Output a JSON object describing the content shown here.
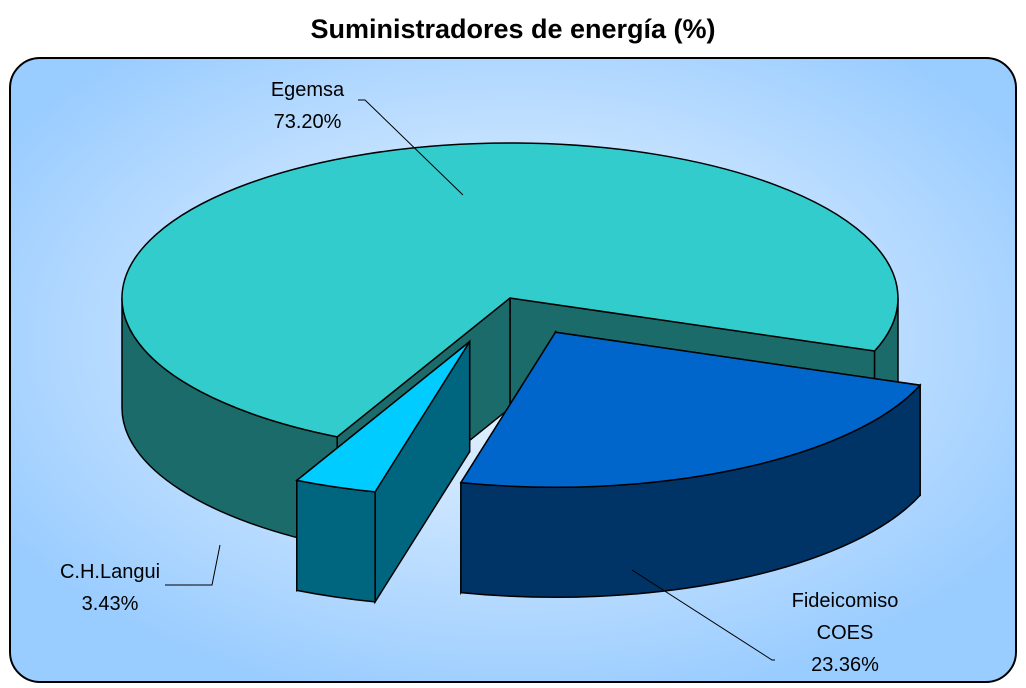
{
  "chart_data": {
    "type": "pie3d",
    "title": "Suministradores de energía (%)",
    "categories": [
      "Fideicomiso COES",
      "C.H.Langui",
      "Egemsa"
    ],
    "values": [
      23.36,
      3.43,
      73.2
    ],
    "value_labels": [
      "23.36%",
      "3.43%",
      "73.20%"
    ],
    "colors": [
      "#0066cc",
      "#00ccff",
      "#33cccc"
    ],
    "side_colors": [
      "#003366",
      "#006680",
      "#1c6b6b"
    ]
  }
}
